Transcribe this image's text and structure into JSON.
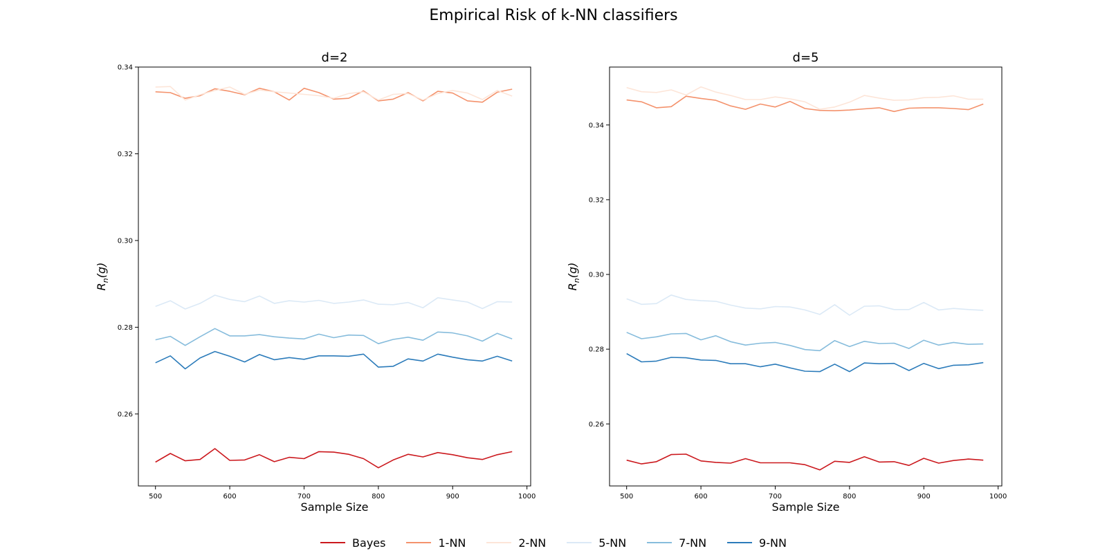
{
  "figure": {
    "suptitle": "Empirical Risk of k-NN classifiers"
  },
  "legend": {
    "placement": "bottom-center"
  },
  "series_styles": [
    {
      "name": "Bayes",
      "color": "#cb181d"
    },
    {
      "name": "1-NN",
      "color": "#f4926c"
    },
    {
      "name": "2-NN",
      "color": "#fde5d8"
    },
    {
      "name": "5-NN",
      "color": "#dbe9f6"
    },
    {
      "name": "7-NN",
      "color": "#86bcdc"
    },
    {
      "name": "9-NN",
      "color": "#2b7bba"
    }
  ],
  "chart_data": [
    {
      "type": "line",
      "title": "d=2",
      "xlabel": "Sample Size",
      "ylabel": "R_n(g)",
      "xlim": [
        477,
        1005
      ],
      "ylim": [
        0.2434,
        0.34
      ],
      "xticks": [
        500,
        600,
        700,
        800,
        900,
        1000
      ],
      "yticks": [
        0.26,
        0.28,
        0.3,
        0.32,
        0.34
      ],
      "x": [
        500,
        520,
        540,
        560,
        580,
        600,
        620,
        640,
        660,
        680,
        700,
        720,
        740,
        760,
        780,
        800,
        820,
        840,
        860,
        880,
        900,
        920,
        940,
        960,
        980
      ],
      "series": [
        {
          "name": "Bayes",
          "values": [
            0.2489,
            0.2509,
            0.2492,
            0.2495,
            0.252,
            0.2493,
            0.2494,
            0.2506,
            0.249,
            0.25,
            0.2497,
            0.2513,
            0.2512,
            0.2507,
            0.2497,
            0.2476,
            0.2494,
            0.2507,
            0.2501,
            0.2511,
            0.2506,
            0.2499,
            0.2495,
            0.2506,
            0.2513
          ]
        },
        {
          "name": "1-NN",
          "values": [
            0.3343,
            0.3341,
            0.3328,
            0.3334,
            0.335,
            0.3344,
            0.3336,
            0.3351,
            0.3343,
            0.3324,
            0.3351,
            0.3341,
            0.3326,
            0.3328,
            0.3345,
            0.3322,
            0.3326,
            0.3341,
            0.3322,
            0.3344,
            0.334,
            0.3322,
            0.3319,
            0.3342,
            0.3349
          ]
        },
        {
          "name": "2-NN",
          "values": [
            0.3354,
            0.3355,
            0.3324,
            0.3336,
            0.3346,
            0.3354,
            0.3337,
            0.3347,
            0.3343,
            0.334,
            0.3337,
            0.3334,
            0.3328,
            0.3339,
            0.3343,
            0.3324,
            0.3337,
            0.3339,
            0.3324,
            0.3339,
            0.3346,
            0.334,
            0.3325,
            0.3346,
            0.3333
          ]
        },
        {
          "name": "5-NN",
          "values": [
            0.2848,
            0.2861,
            0.2842,
            0.2855,
            0.2874,
            0.2864,
            0.2859,
            0.2872,
            0.2855,
            0.2861,
            0.2858,
            0.2862,
            0.2855,
            0.2858,
            0.2863,
            0.2853,
            0.2852,
            0.2857,
            0.2845,
            0.2868,
            0.2863,
            0.2858,
            0.2843,
            0.2859,
            0.2858
          ]
        },
        {
          "name": "7-NN",
          "values": [
            0.2771,
            0.2779,
            0.2758,
            0.2778,
            0.2797,
            0.278,
            0.278,
            0.2783,
            0.2778,
            0.2775,
            0.2773,
            0.2784,
            0.2776,
            0.2782,
            0.2781,
            0.2762,
            0.2772,
            0.2777,
            0.277,
            0.2789,
            0.2787,
            0.278,
            0.2768,
            0.2786,
            0.2773
          ]
        },
        {
          "name": "9-NN",
          "values": [
            0.2718,
            0.2734,
            0.2704,
            0.2729,
            0.2744,
            0.2733,
            0.272,
            0.2737,
            0.2725,
            0.273,
            0.2726,
            0.2734,
            0.2734,
            0.2733,
            0.2738,
            0.2708,
            0.271,
            0.2727,
            0.2722,
            0.2738,
            0.2731,
            0.2725,
            0.2722,
            0.2733,
            0.2722
          ]
        }
      ]
    },
    {
      "type": "line",
      "title": "d=5",
      "xlabel": "Sample Size",
      "ylabel": "R_n(g)",
      "xlim": [
        477,
        1005
      ],
      "ylim": [
        0.2434,
        0.3555
      ],
      "xticks": [
        500,
        600,
        700,
        800,
        900,
        1000
      ],
      "yticks": [
        0.26,
        0.28,
        0.3,
        0.32,
        0.34
      ],
      "x": [
        500,
        520,
        540,
        560,
        580,
        600,
        620,
        640,
        660,
        680,
        700,
        720,
        740,
        760,
        780,
        800,
        820,
        840,
        860,
        880,
        900,
        920,
        940,
        960,
        980
      ],
      "series": [
        {
          "name": "Bayes",
          "values": [
            0.2503,
            0.2493,
            0.2499,
            0.2518,
            0.2519,
            0.2501,
            0.2497,
            0.2495,
            0.2507,
            0.2496,
            0.2496,
            0.2496,
            0.2491,
            0.2477,
            0.25,
            0.2497,
            0.2512,
            0.2498,
            0.2499,
            0.2489,
            0.2508,
            0.2495,
            0.2502,
            0.2506,
            0.2503
          ]
        },
        {
          "name": "1-NN",
          "values": [
            0.3467,
            0.3462,
            0.3446,
            0.3449,
            0.3477,
            0.3471,
            0.3466,
            0.3451,
            0.3442,
            0.3456,
            0.3448,
            0.3463,
            0.3444,
            0.3439,
            0.3438,
            0.344,
            0.3443,
            0.3446,
            0.3436,
            0.3445,
            0.3446,
            0.3446,
            0.3444,
            0.3441,
            0.3456
          ]
        },
        {
          "name": "2-NN",
          "values": [
            0.35,
            0.3489,
            0.3487,
            0.3494,
            0.348,
            0.3502,
            0.3488,
            0.3479,
            0.3468,
            0.3468,
            0.3475,
            0.347,
            0.3462,
            0.3442,
            0.3448,
            0.3461,
            0.3479,
            0.3472,
            0.3466,
            0.3467,
            0.3473,
            0.3474,
            0.3478,
            0.3469,
            0.3469
          ]
        },
        {
          "name": "5-NN",
          "values": [
            0.2935,
            0.292,
            0.2922,
            0.2945,
            0.2933,
            0.293,
            0.2928,
            0.2918,
            0.291,
            0.2908,
            0.2914,
            0.2913,
            0.2905,
            0.2893,
            0.2919,
            0.2891,
            0.2915,
            0.2916,
            0.2906,
            0.2906,
            0.2925,
            0.2905,
            0.2909,
            0.2906,
            0.2904
          ]
        },
        {
          "name": "7-NN",
          "values": [
            0.2845,
            0.2828,
            0.2833,
            0.2841,
            0.2842,
            0.2825,
            0.2836,
            0.282,
            0.2811,
            0.2816,
            0.2818,
            0.281,
            0.2799,
            0.2796,
            0.2823,
            0.2807,
            0.2821,
            0.2815,
            0.2816,
            0.2802,
            0.2824,
            0.2811,
            0.2818,
            0.2813,
            0.2814
          ]
        },
        {
          "name": "9-NN",
          "values": [
            0.2788,
            0.2766,
            0.2768,
            0.2778,
            0.2777,
            0.2771,
            0.277,
            0.2761,
            0.2761,
            0.2753,
            0.276,
            0.275,
            0.2741,
            0.274,
            0.276,
            0.274,
            0.2763,
            0.2761,
            0.2762,
            0.2743,
            0.2762,
            0.2748,
            0.2757,
            0.2758,
            0.2764
          ]
        }
      ]
    }
  ]
}
